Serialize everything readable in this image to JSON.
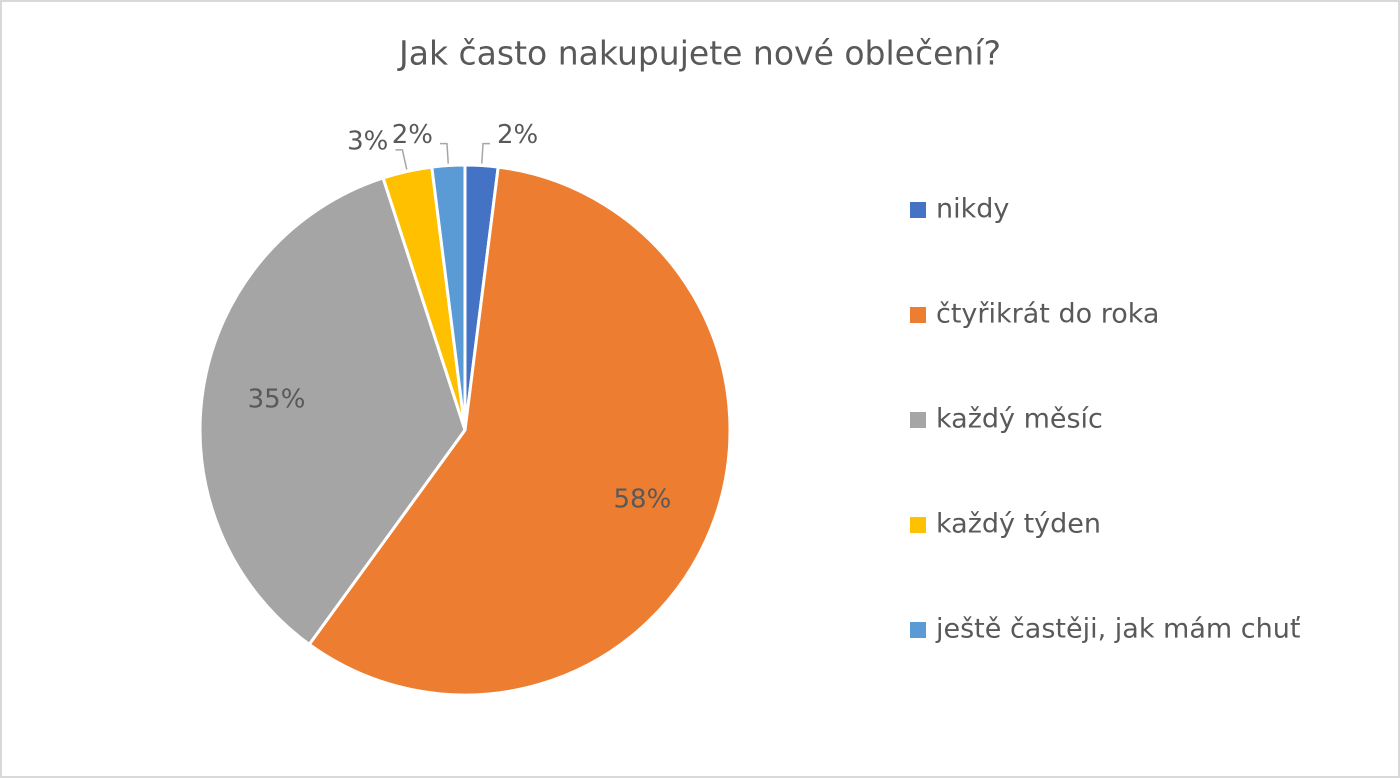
{
  "chart_data": {
    "type": "pie",
    "title": "Jak často nakupujete nové oblečení?",
    "categories": [
      "nikdy",
      "čtyřikrát do roka",
      "každý měsíc",
      "každý týden",
      "ještě častěji, jak mám chuť"
    ],
    "values": [
      2,
      58,
      35,
      3,
      2
    ],
    "value_labels": [
      "2%",
      "58%",
      "35%",
      "3%",
      "2%"
    ],
    "colors": [
      "#4472c4",
      "#ed7d31",
      "#a5a5a5",
      "#ffc000",
      "#5b9bd5"
    ],
    "legend": "right"
  }
}
